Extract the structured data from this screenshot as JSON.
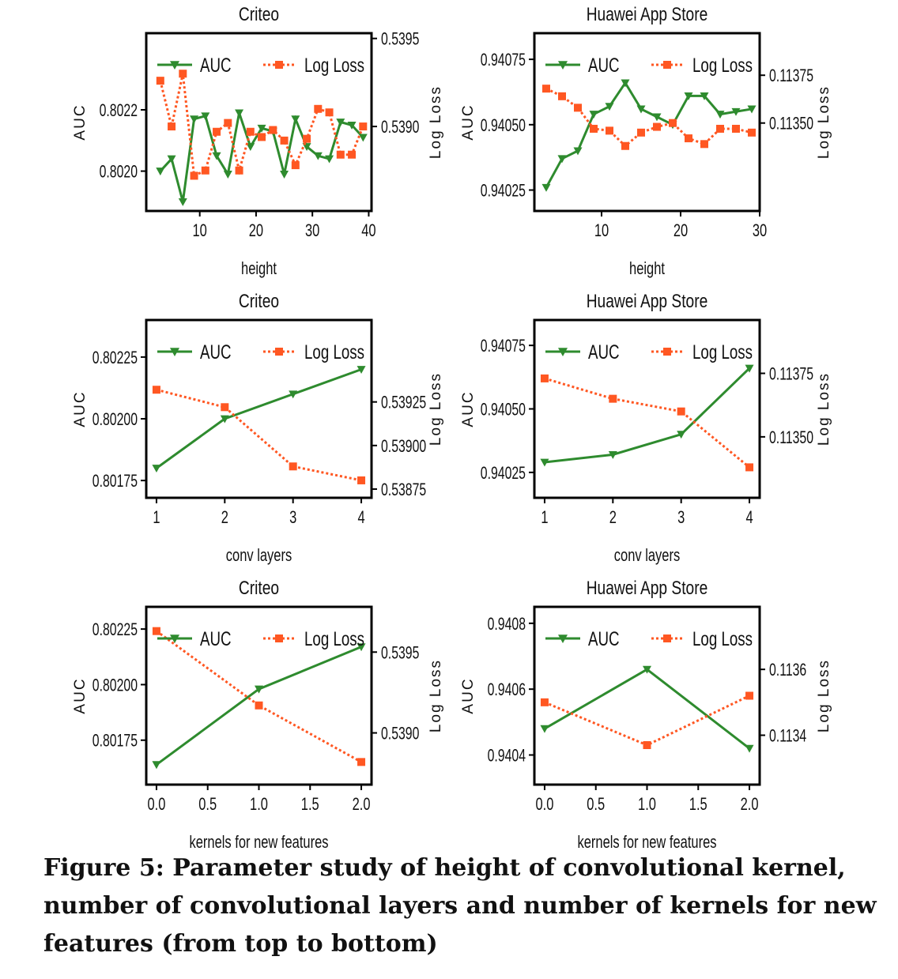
{
  "figure": {
    "caption": "Figure 5: Parameter study of height of convolutional kernel, number of convolutional layers and number of kernels for new features (from top to bottom)",
    "colors": {
      "auc": "#2e8b2e",
      "logloss": "#ff5722"
    }
  },
  "chart_data": [
    {
      "type": "line",
      "title": "Criteo",
      "xlabel": "height",
      "ylabel": "AUC",
      "y2label": "Log Loss",
      "xlim": [
        0.5,
        40.5
      ],
      "ylim": [
        0.80187,
        0.80245
      ],
      "y2lim": [
        0.53852,
        0.53953
      ],
      "xticks": [
        10,
        20,
        30,
        40
      ],
      "xticklabels": [
        "10",
        "20",
        "30",
        "40"
      ],
      "yticks": [
        0.802,
        0.8022
      ],
      "yticklabels": [
        "0.8020",
        "0.8022"
      ],
      "y2ticks": [
        0.539,
        0.5395
      ],
      "y2ticklabels": [
        "0.5390",
        "0.5395"
      ],
      "legend": "top",
      "series": [
        {
          "name": "AUC",
          "axis": "left",
          "x": [
            3,
            5,
            7,
            9,
            11,
            13,
            15,
            17,
            19,
            21,
            23,
            25,
            27,
            29,
            31,
            33,
            35,
            37,
            39
          ],
          "values": [
            0.802,
            0.80204,
            0.8019,
            0.80217,
            0.80218,
            0.80205,
            0.80199,
            0.80219,
            0.80208,
            0.80214,
            0.80213,
            0.80199,
            0.80217,
            0.80208,
            0.80205,
            0.80204,
            0.80216,
            0.80215,
            0.80211
          ]
        },
        {
          "name": "Log Loss",
          "axis": "right",
          "x": [
            3,
            5,
            7,
            9,
            11,
            13,
            15,
            17,
            19,
            21,
            23,
            25,
            27,
            29,
            31,
            33,
            35,
            37,
            39
          ],
          "values": [
            0.53926,
            0.539,
            0.5393,
            0.53872,
            0.53875,
            0.53897,
            0.53902,
            0.53875,
            0.53897,
            0.53894,
            0.53898,
            0.53892,
            0.53878,
            0.53893,
            0.5391,
            0.53908,
            0.53884,
            0.53884,
            0.539
          ]
        }
      ]
    },
    {
      "type": "line",
      "title": "Huawei App Store",
      "xlabel": "height",
      "ylabel": "AUC",
      "y2label": "Log Loss",
      "xlim": [
        1.5,
        30
      ],
      "ylim": [
        0.94017,
        0.94085
      ],
      "y2lim": [
        0.11304,
        0.11397
      ],
      "xticks": [
        10,
        20,
        30
      ],
      "xticklabels": [
        "10",
        "20",
        "30"
      ],
      "yticks": [
        0.94025,
        0.9405,
        0.94075
      ],
      "yticklabels": [
        "0.94025",
        "0.94050",
        "0.94075"
      ],
      "y2ticks": [
        0.1135,
        0.11375
      ],
      "y2ticklabels": [
        "0.11350",
        "0.11375"
      ],
      "legend": "top",
      "series": [
        {
          "name": "AUC",
          "axis": "left",
          "x": [
            3,
            5,
            7,
            9,
            11,
            13,
            15,
            17,
            19,
            21,
            23,
            25,
            27,
            29
          ],
          "values": [
            0.94026,
            0.94037,
            0.9404,
            0.94054,
            0.94057,
            0.94066,
            0.94056,
            0.94053,
            0.9405,
            0.94061,
            0.94061,
            0.94054,
            0.94055,
            0.94056
          ]
        },
        {
          "name": "Log Loss",
          "axis": "right",
          "x": [
            3,
            5,
            7,
            9,
            11,
            13,
            15,
            17,
            19,
            21,
            23,
            25,
            27,
            29
          ],
          "values": [
            0.11368,
            0.11364,
            0.11358,
            0.11347,
            0.11346,
            0.11338,
            0.11345,
            0.11348,
            0.1135,
            0.11342,
            0.11339,
            0.11347,
            0.11347,
            0.11345
          ]
        }
      ]
    },
    {
      "type": "line",
      "title": "Criteo",
      "xlabel": "conv layers",
      "ylabel": "AUC",
      "y2label": "Log Loss",
      "xlim": [
        0.85,
        4.15
      ],
      "ylim": [
        0.80168,
        0.8024
      ],
      "y2lim": [
        0.5387,
        0.53972
      ],
      "xticks": [
        1,
        2,
        3,
        4
      ],
      "xticklabels": [
        "1",
        "2",
        "3",
        "4"
      ],
      "yticks": [
        0.80175,
        0.802,
        0.80225
      ],
      "yticklabels": [
        "0.80175",
        "0.80200",
        "0.80225"
      ],
      "y2ticks": [
        0.53875,
        0.539,
        0.53925
      ],
      "y2ticklabels": [
        "0.53875",
        "0.53900",
        "0.53925"
      ],
      "legend": "top",
      "series": [
        {
          "name": "AUC",
          "axis": "left",
          "x": [
            1,
            2,
            3,
            4
          ],
          "values": [
            0.8018,
            0.802,
            0.8021,
            0.8022
          ]
        },
        {
          "name": "Log Loss",
          "axis": "right",
          "x": [
            1,
            2,
            3,
            4
          ],
          "values": [
            0.53932,
            0.53922,
            0.53888,
            0.5388
          ]
        }
      ]
    },
    {
      "type": "line",
      "title": "Huawei App Store",
      "xlabel": "conv layers",
      "ylabel": "AUC",
      "y2label": "Log Loss",
      "xlim": [
        0.85,
        4.15
      ],
      "ylim": [
        0.94015,
        0.94085
      ],
      "y2lim": [
        0.11326,
        0.11396
      ],
      "xticks": [
        1,
        2,
        3,
        4
      ],
      "xticklabels": [
        "1",
        "2",
        "3",
        "4"
      ],
      "yticks": [
        0.94025,
        0.9405,
        0.94075
      ],
      "yticklabels": [
        "0.94025",
        "0.94050",
        "0.94075"
      ],
      "y2ticks": [
        0.1135,
        0.11375
      ],
      "y2ticklabels": [
        "0.11350",
        "0.11375"
      ],
      "legend": "top",
      "series": [
        {
          "name": "AUC",
          "axis": "left",
          "x": [
            1,
            2,
            3,
            4
          ],
          "values": [
            0.94029,
            0.94032,
            0.9404,
            0.94066
          ]
        },
        {
          "name": "Log Loss",
          "axis": "right",
          "x": [
            1,
            2,
            3,
            4
          ],
          "values": [
            0.11373,
            0.11365,
            0.1136,
            0.11338
          ]
        }
      ]
    },
    {
      "type": "line",
      "title": "Criteo",
      "xlabel": "kernels for new features",
      "ylabel": "AUC",
      "y2label": "Log Loss",
      "xlim": [
        -0.1,
        2.1
      ],
      "ylim": [
        0.80155,
        0.80235
      ],
      "y2lim": [
        0.53868,
        0.53978
      ],
      "xticks": [
        0.0,
        0.5,
        1.0,
        1.5,
        2.0
      ],
      "xticklabels": [
        "0.0",
        "0.5",
        "1.0",
        "1.5",
        "2.0"
      ],
      "yticks": [
        0.80175,
        0.802,
        0.80225
      ],
      "yticklabels": [
        "0.80175",
        "0.80200",
        "0.80225"
      ],
      "y2ticks": [
        0.539,
        0.5395
      ],
      "y2ticklabels": [
        "0.5390",
        "0.5395"
      ],
      "legend": "top",
      "series": [
        {
          "name": "AUC",
          "axis": "left",
          "x": [
            0.0,
            1.0,
            2.0
          ],
          "values": [
            0.80164,
            0.80198,
            0.80217
          ]
        },
        {
          "name": "Log Loss",
          "axis": "right",
          "x": [
            0.0,
            1.0,
            2.0
          ],
          "values": [
            0.53963,
            0.53917,
            0.53882
          ]
        }
      ]
    },
    {
      "type": "line",
      "title": "Huawei App Store",
      "xlabel": "kernels for new features",
      "ylabel": "AUC",
      "y2label": "Log Loss",
      "xlim": [
        -0.1,
        2.1
      ],
      "ylim": [
        0.94031,
        0.94085
      ],
      "y2lim": [
        0.11325,
        0.11379
      ],
      "xticks": [
        0.0,
        0.5,
        1.0,
        1.5,
        2.0
      ],
      "xticklabels": [
        "0.0",
        "0.5",
        "1.0",
        "1.5",
        "2.0"
      ],
      "yticks": [
        0.9404,
        0.9406,
        0.9408
      ],
      "yticklabels": [
        "0.9404",
        "0.9406",
        "0.9408"
      ],
      "y2ticks": [
        0.1134,
        0.1136
      ],
      "y2ticklabels": [
        "0.1134",
        "0.1136"
      ],
      "legend": "top",
      "series": [
        {
          "name": "AUC",
          "axis": "left",
          "x": [
            0.0,
            1.0,
            2.0
          ],
          "values": [
            0.94048,
            0.94066,
            0.94042
          ]
        },
        {
          "name": "Log Loss",
          "axis": "right",
          "x": [
            0.0,
            1.0,
            2.0
          ],
          "values": [
            0.1135,
            0.11337,
            0.11352
          ]
        }
      ]
    }
  ]
}
